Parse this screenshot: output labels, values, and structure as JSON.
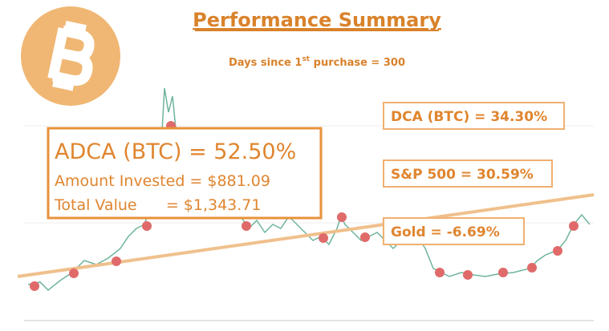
{
  "header": {
    "title": "Performance Summary",
    "subtitle": {
      "before": "Days since 1",
      "superscript": "st",
      "after": " purchase = 300"
    }
  },
  "main_box": {
    "headline": "ADCA (BTC) = 52.50%",
    "lines": [
      "Amount Invested = $881.09",
      "Total Value      = $1,343.71"
    ]
  },
  "comparisons": [
    "DCA (BTC) = 34.30%",
    "S&P 500 = 30.59%",
    "Gold = -6.69%"
  ]
}
